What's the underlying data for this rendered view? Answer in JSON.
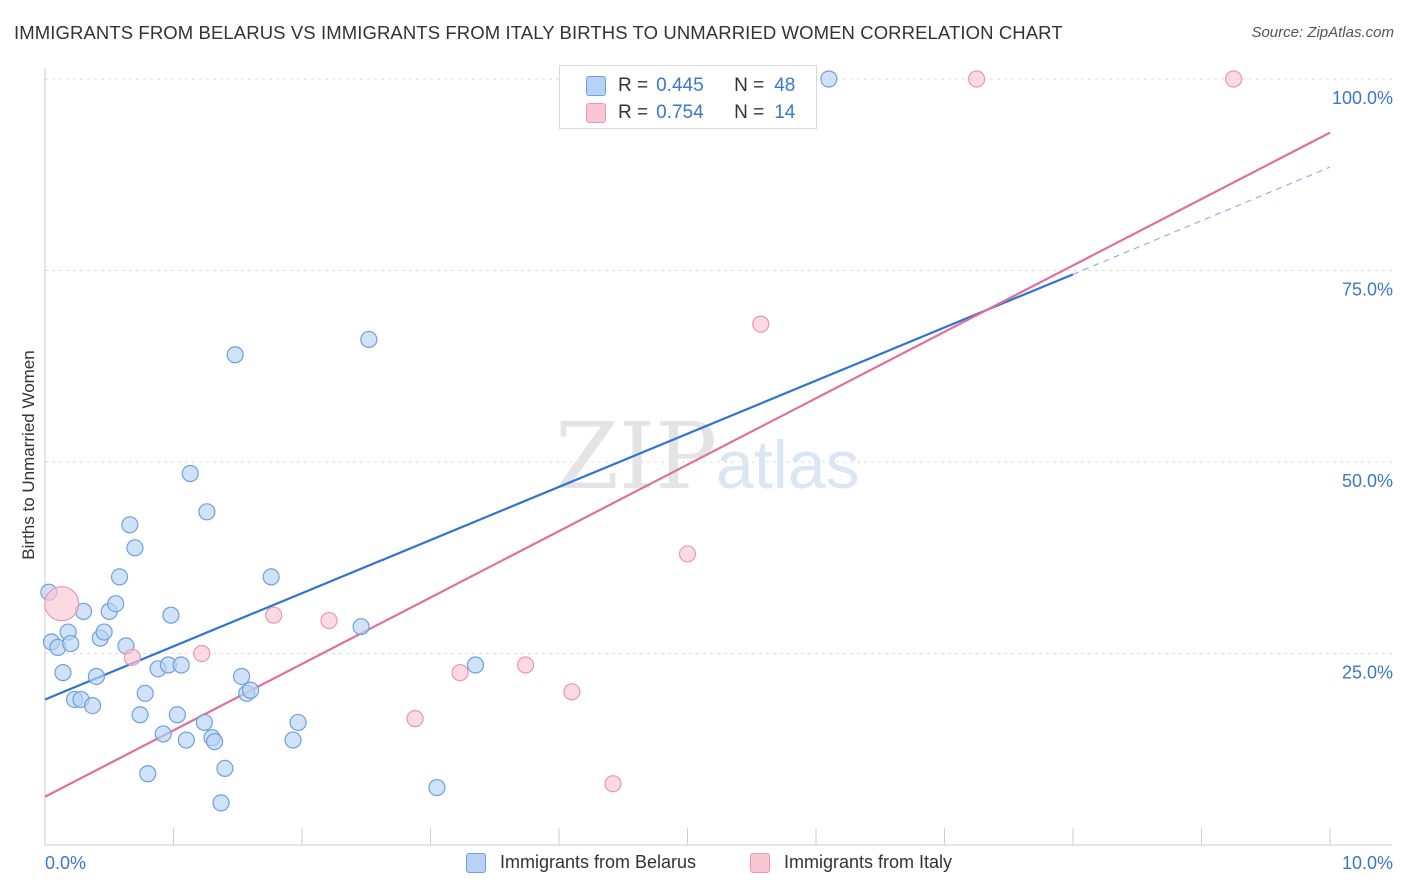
{
  "header": {
    "title": "IMMIGRANTS FROM BELARUS VS IMMIGRANTS FROM ITALY BIRTHS TO UNMARRIED WOMEN CORRELATION CHART",
    "source": "Source: ZipAtlas.com"
  },
  "stats": {
    "belarus": {
      "r_label": "R =",
      "r": "0.445",
      "n_label": "N =",
      "n": "48"
    },
    "italy": {
      "r_label": "R =",
      "r": "0.754",
      "n_label": "N =",
      "n": "14"
    }
  },
  "colors": {
    "belarus_fill": "#b7d2f4",
    "belarus_stroke": "#6ea0dd",
    "belarus_line": "#2e74d0",
    "italy_fill": "#f9c6d4",
    "italy_stroke": "#ec96b0",
    "italy_line": "#e0709a",
    "axis_label": "#3a78c9",
    "grid": "#dcdcdc"
  },
  "watermark": {
    "zip": "ZIP",
    "atlas": "atlas"
  },
  "chart_data": {
    "type": "scatter",
    "title": "IMMIGRANTS FROM BELARUS VS IMMIGRANTS FROM ITALY BIRTHS TO UNMARRIED WOMEN CORRELATION CHART",
    "xlabel": "",
    "ylabel": "Births to Unmarried Women",
    "xlim": [
      0,
      10
    ],
    "ylim": [
      0,
      100
    ],
    "x_tick_labels": [
      "0.0%",
      "10.0%"
    ],
    "y_tick_labels": [
      "25.0%",
      "50.0%",
      "75.0%",
      "100.0%"
    ],
    "y_ticks": [
      25,
      50,
      75,
      100
    ],
    "series": [
      {
        "name": "Immigrants from Belarus",
        "points": [
          [
            0.03,
            33.0
          ],
          [
            0.05,
            26.5
          ],
          [
            0.1,
            25.8
          ],
          [
            0.14,
            22.5
          ],
          [
            0.18,
            27.8
          ],
          [
            0.2,
            26.3
          ],
          [
            0.23,
            19.0
          ],
          [
            0.28,
            19.0
          ],
          [
            0.3,
            30.5
          ],
          [
            0.37,
            18.2
          ],
          [
            0.4,
            22.0
          ],
          [
            0.43,
            27.0
          ],
          [
            0.46,
            27.8
          ],
          [
            0.5,
            30.5
          ],
          [
            0.55,
            31.5
          ],
          [
            0.58,
            35.0
          ],
          [
            0.63,
            26.0
          ],
          [
            0.66,
            41.8
          ],
          [
            0.7,
            38.8
          ],
          [
            0.74,
            17.0
          ],
          [
            0.78,
            19.8
          ],
          [
            0.8,
            9.3
          ],
          [
            0.88,
            23.0
          ],
          [
            0.92,
            14.5
          ],
          [
            0.96,
            23.5
          ],
          [
            0.98,
            30.0
          ],
          [
            1.03,
            17.0
          ],
          [
            1.06,
            23.5
          ],
          [
            1.1,
            13.7
          ],
          [
            1.13,
            48.5
          ],
          [
            1.24,
            16.0
          ],
          [
            1.26,
            43.5
          ],
          [
            1.3,
            14.0
          ],
          [
            1.32,
            13.5
          ],
          [
            1.4,
            10.0
          ],
          [
            1.37,
            5.5
          ],
          [
            1.48,
            64.0
          ],
          [
            1.53,
            22.0
          ],
          [
            1.57,
            19.8
          ],
          [
            1.6,
            20.2
          ],
          [
            1.76,
            35.0
          ],
          [
            1.93,
            13.7
          ],
          [
            1.97,
            16.0
          ],
          [
            2.46,
            28.5
          ],
          [
            2.52,
            66.0
          ],
          [
            3.05,
            7.5
          ],
          [
            3.35,
            23.5
          ],
          [
            6.1,
            100.0
          ]
        ],
        "trend": {
          "x": [
            0,
            8.0
          ],
          "y": [
            19.0,
            74.5
          ]
        },
        "trend_extension": {
          "x": [
            8.0,
            10.0
          ],
          "y": [
            74.5,
            88.5
          ]
        }
      },
      {
        "name": "Immigrants from Italy",
        "points": [
          [
            0.13,
            31.5
          ],
          [
            0.68,
            24.5
          ],
          [
            1.22,
            25.0
          ],
          [
            1.78,
            30.0
          ],
          [
            2.21,
            29.3
          ],
          [
            2.88,
            16.5
          ],
          [
            3.23,
            22.5
          ],
          [
            3.74,
            23.5
          ],
          [
            4.1,
            20.0
          ],
          [
            4.42,
            8.0
          ],
          [
            5.0,
            38.0
          ],
          [
            5.57,
            68.0
          ],
          [
            7.25,
            100.0
          ],
          [
            9.25,
            100.0
          ]
        ],
        "trend": {
          "x": [
            0,
            10.0
          ],
          "y": [
            6.3,
            93.0
          ]
        }
      }
    ],
    "legend": [
      "Immigrants from Belarus",
      "Immigrants from Italy"
    ],
    "grid": true
  }
}
